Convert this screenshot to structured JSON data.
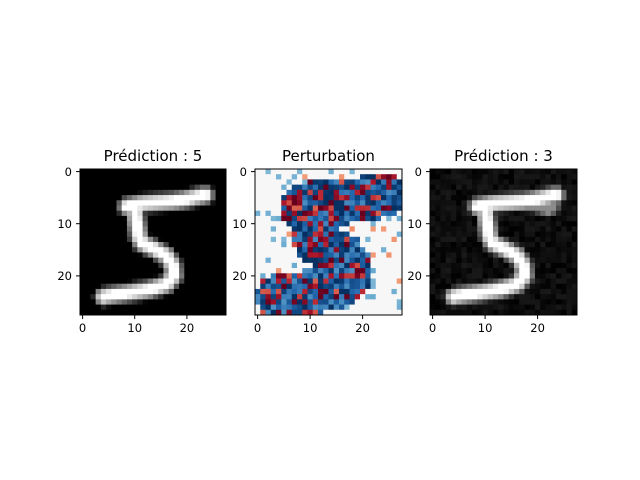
{
  "chart_data": [
    {
      "type": "heatmap",
      "title": "Prédiction : 5",
      "colormap": "gray",
      "xticks": [
        "0",
        "10",
        "20"
      ],
      "yticks": [
        "0",
        "10",
        "20"
      ],
      "xlim": [
        0,
        28
      ],
      "ylim": [
        28,
        0
      ],
      "grid": false
    },
    {
      "type": "heatmap",
      "title": "Perturbation",
      "colormap": "RdBu",
      "xticks": [
        "0",
        "10",
        "20"
      ],
      "yticks": [
        "0",
        "10",
        "20"
      ],
      "xlim": [
        0,
        28
      ],
      "ylim": [
        28,
        0
      ],
      "grid": false
    },
    {
      "type": "heatmap",
      "title": "Prédiction : 3",
      "colormap": "gray",
      "xticks": [
        "0",
        "10",
        "20"
      ],
      "yticks": [
        "0",
        "10",
        "20"
      ],
      "xlim": [
        0,
        28
      ],
      "ylim": [
        28,
        0
      ],
      "grid": false
    }
  ]
}
